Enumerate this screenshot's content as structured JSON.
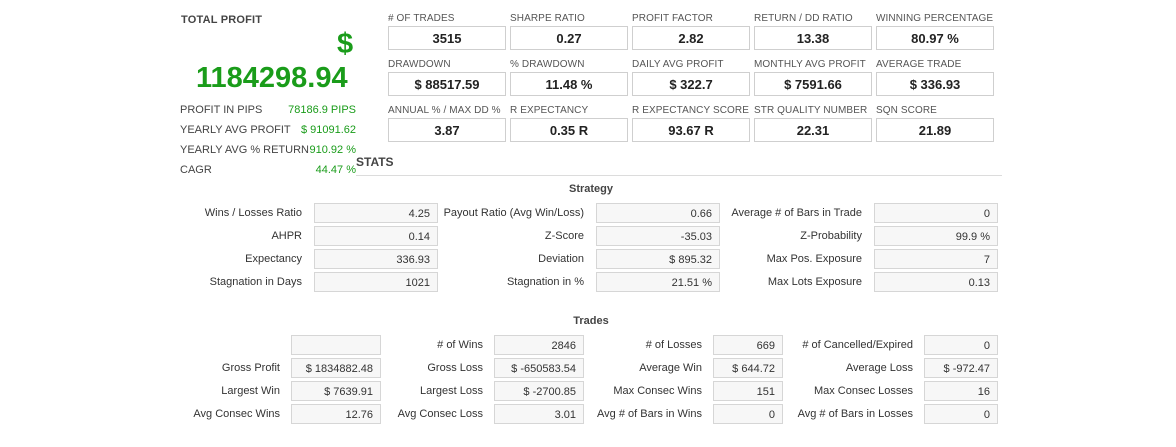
{
  "summary": {
    "total_profit_label": "TOTAL PROFIT",
    "currency_symbol": "$",
    "total_profit_value": "1184298.94",
    "rows": [
      {
        "label": "PROFIT IN PIPS",
        "value": "78186.9 PIPS"
      },
      {
        "label": "YEARLY AVG PROFIT",
        "value": "$ 91091.62"
      },
      {
        "label": "YEARLY AVG % RETURN",
        "value": "910.92 %"
      },
      {
        "label": "CAGR",
        "value": "44.47 %"
      }
    ]
  },
  "metrics": [
    {
      "label": "# OF TRADES",
      "value": "3515"
    },
    {
      "label": "SHARPE RATIO",
      "value": "0.27"
    },
    {
      "label": "PROFIT FACTOR",
      "value": "2.82"
    },
    {
      "label": "RETURN / DD RATIO",
      "value": "13.38"
    },
    {
      "label": "WINNING PERCENTAGE",
      "value": "80.97 %"
    },
    {
      "label": "DRAWDOWN",
      "value": "$ 88517.59"
    },
    {
      "label": "% DRAWDOWN",
      "value": "11.48 %"
    },
    {
      "label": "DAILY AVG PROFIT",
      "value": "$ 322.7"
    },
    {
      "label": "MONTHLY AVG PROFIT",
      "value": "$ 7591.66"
    },
    {
      "label": "AVERAGE TRADE",
      "value": "$ 336.93"
    },
    {
      "label": "ANNUAL % / MAX DD %",
      "value": "3.87"
    },
    {
      "label": "R EXPECTANCY",
      "value": "0.35 R"
    },
    {
      "label": "R EXPECTANCY SCORE",
      "value": "93.67 R"
    },
    {
      "label": "STR QUALITY NUMBER",
      "value": "22.31"
    },
    {
      "label": "SQN SCORE",
      "value": "21.89"
    }
  ],
  "stats_title": "STATS",
  "strategy": {
    "title": "Strategy",
    "rows": [
      [
        {
          "label": "Wins / Losses Ratio",
          "value": "4.25"
        },
        {
          "label": "Payout Ratio (Avg Win/Loss)",
          "value": "0.66"
        },
        {
          "label": "Average # of Bars in Trade",
          "value": "0"
        }
      ],
      [
        {
          "label": "AHPR",
          "value": "0.14"
        },
        {
          "label": "Z-Score",
          "value": "-35.03"
        },
        {
          "label": "Z-Probability",
          "value": "99.9 %"
        }
      ],
      [
        {
          "label": "Expectancy",
          "value": "336.93"
        },
        {
          "label": "Deviation",
          "value": "$ 895.32"
        },
        {
          "label": "Max Pos. Exposure",
          "value": "7"
        }
      ],
      [
        {
          "label": "Stagnation in Days",
          "value": "1021"
        },
        {
          "label": "Stagnation in %",
          "value": "21.51 %"
        },
        {
          "label": "Max Lots Exposure",
          "value": "0.13"
        }
      ]
    ]
  },
  "trades": {
    "title": "Trades",
    "rows": [
      [
        {
          "label": "",
          "value": ""
        },
        {
          "label": "# of Wins",
          "value": "2846"
        },
        {
          "label": "# of Losses",
          "value": "669"
        },
        {
          "label": "# of Cancelled/Expired",
          "value": "0"
        }
      ],
      [
        {
          "label": "Gross Profit",
          "value": "$ 1834882.48"
        },
        {
          "label": "Gross Loss",
          "value": "$ -650583.54"
        },
        {
          "label": "Average Win",
          "value": "$ 644.72"
        },
        {
          "label": "Average Loss",
          "value": "$ -972.47"
        }
      ],
      [
        {
          "label": "Largest Win",
          "value": "$ 7639.91"
        },
        {
          "label": "Largest Loss",
          "value": "$ -2700.85"
        },
        {
          "label": "Max Consec Wins",
          "value": "151"
        },
        {
          "label": "Max Consec Losses",
          "value": "16"
        }
      ],
      [
        {
          "label": "Avg Consec Wins",
          "value": "12.76"
        },
        {
          "label": "Avg Consec Loss",
          "value": "3.01"
        },
        {
          "label": "Avg # of Bars in Wins",
          "value": "0"
        },
        {
          "label": "Avg # of Bars in Losses",
          "value": "0"
        }
      ]
    ]
  }
}
